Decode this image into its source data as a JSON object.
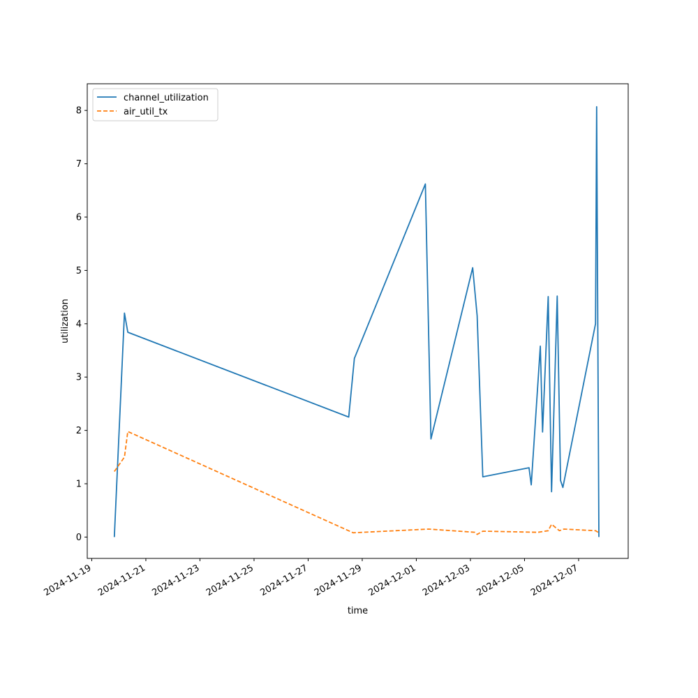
{
  "chart_data": {
    "type": "line",
    "xlabel": "time",
    "ylabel": "utilization",
    "xlim": [
      "2024-11-18T20:00",
      "2024-12-08T20:00"
    ],
    "ylim": [
      -0.4,
      8.5
    ],
    "x_tick_labels": [
      "2024-11-19",
      "2024-11-21",
      "2024-11-23",
      "2024-11-25",
      "2024-11-27",
      "2024-11-29",
      "2024-12-01",
      "2024-12-03",
      "2024-12-05",
      "2024-12-07"
    ],
    "y_ticks": [
      0,
      1,
      2,
      3,
      4,
      5,
      6,
      7,
      8
    ],
    "legend_position": "top-left",
    "series": [
      {
        "name": "channel_utilization",
        "color": "#1f77b4",
        "dash": "solid",
        "points": [
          [
            "2024-11-19T20:00",
            0.0
          ],
          [
            "2024-11-20T05:00",
            4.2
          ],
          [
            "2024-11-20T08:00",
            3.84
          ],
          [
            "2024-11-28T12:00",
            2.25
          ],
          [
            "2024-11-28T17:00",
            3.35
          ],
          [
            "2024-12-01T08:00",
            6.62
          ],
          [
            "2024-12-01T13:00",
            1.84
          ],
          [
            "2024-12-03T02:00",
            5.05
          ],
          [
            "2024-12-03T06:00",
            4.15
          ],
          [
            "2024-12-03T11:00",
            1.13
          ],
          [
            "2024-12-05T04:00",
            1.3
          ],
          [
            "2024-12-05T06:00",
            0.98
          ],
          [
            "2024-12-05T14:00",
            3.58
          ],
          [
            "2024-12-05T16:00",
            1.97
          ],
          [
            "2024-12-05T21:00",
            4.51
          ],
          [
            "2024-12-06T00:00",
            0.85
          ],
          [
            "2024-12-06T05:00",
            4.52
          ],
          [
            "2024-12-06T08:00",
            1.06
          ],
          [
            "2024-12-06T10:00",
            0.93
          ],
          [
            "2024-12-07T15:00",
            4.0
          ],
          [
            "2024-12-07T16:00",
            8.07
          ],
          [
            "2024-12-07T18:00",
            0.0
          ]
        ]
      },
      {
        "name": "air_util_tx",
        "color": "#ff7f0e",
        "dash": "dashed",
        "points": [
          [
            "2024-11-19T20:00",
            1.23
          ],
          [
            "2024-11-20T05:00",
            1.5
          ],
          [
            "2024-11-20T08:00",
            1.98
          ],
          [
            "2024-11-28T16:00",
            0.08
          ],
          [
            "2024-12-01T11:00",
            0.15
          ],
          [
            "2024-12-03T04:00",
            0.09
          ],
          [
            "2024-12-03T06:00",
            0.05
          ],
          [
            "2024-12-03T11:00",
            0.11
          ],
          [
            "2024-12-05T12:00",
            0.09
          ],
          [
            "2024-12-05T21:00",
            0.12
          ],
          [
            "2024-12-06T00:00",
            0.24
          ],
          [
            "2024-12-06T07:00",
            0.12
          ],
          [
            "2024-12-06T11:00",
            0.15
          ],
          [
            "2024-12-07T15:00",
            0.12
          ],
          [
            "2024-12-07T18:00",
            0.08
          ]
        ]
      }
    ]
  }
}
